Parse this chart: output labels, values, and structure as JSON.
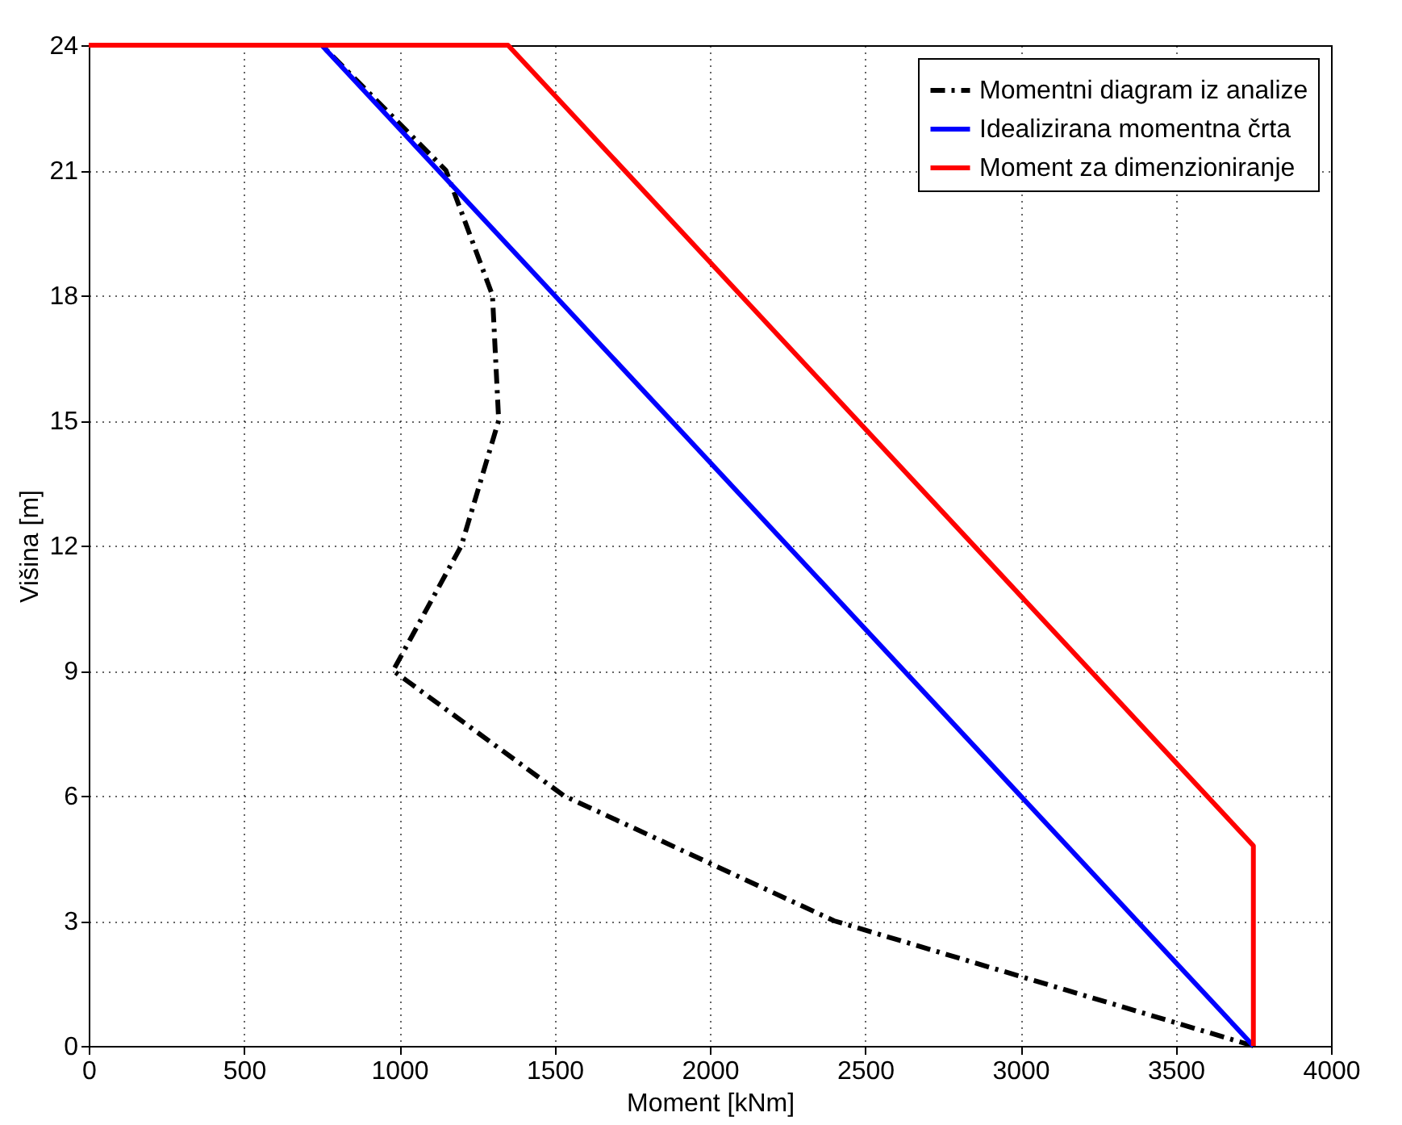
{
  "chart_data": {
    "type": "line",
    "xlabel": "Moment [kNm]",
    "ylabel": "Višina [m]",
    "xlim": [
      0,
      4000
    ],
    "xticks": [
      0,
      500,
      1000,
      1500,
      2000,
      2500,
      3000,
      3500,
      4000
    ],
    "ylim": [
      0,
      24
    ],
    "yticks": [
      0,
      3,
      6,
      9,
      12,
      15,
      18,
      21,
      24
    ],
    "grid": true,
    "legend": "top right",
    "series": [
      {
        "name": "Momentni diagram iz analize",
        "color": "#000000",
        "line_style": "dashed",
        "x": [
          3750,
          2400,
          1530,
          980,
          1200,
          1320,
          1300,
          1150,
          750
        ],
        "values": [
          0,
          3,
          6,
          9,
          12,
          15,
          18,
          21,
          24
        ]
      },
      {
        "name": "Idealizirana momentna črta",
        "color": "#0000ff",
        "line_style": "solid",
        "x": [
          3750,
          750
        ],
        "values": [
          0,
          24
        ]
      },
      {
        "name": "Moment za dimenzioniranje",
        "color": "#ff0000",
        "line_style": "solid",
        "x": [
          0,
          1350,
          3750,
          3750
        ],
        "values": [
          24,
          24,
          4.8,
          0
        ]
      }
    ]
  }
}
